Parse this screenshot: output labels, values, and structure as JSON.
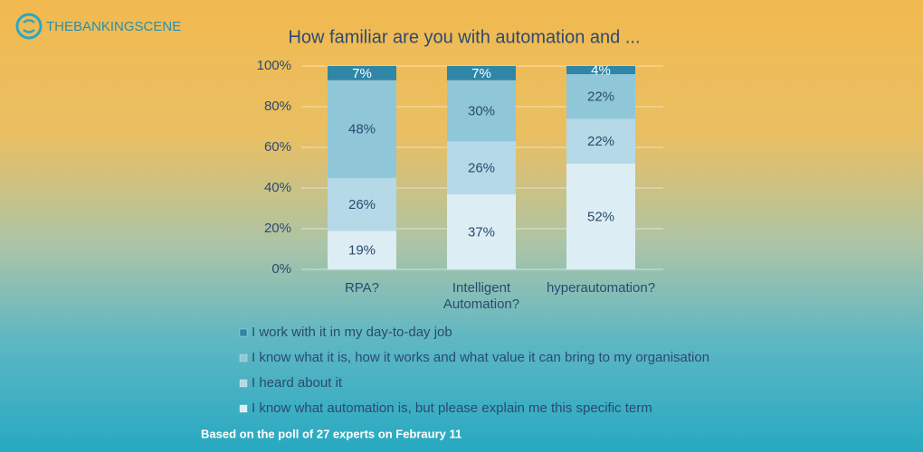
{
  "header": {
    "brand": "THEBANKINGSCENE"
  },
  "chart_data": {
    "type": "stacked_bar",
    "title": "How familiar are you with automation and ...",
    "categories": [
      "RPA?",
      "Intelligent Automation?",
      "hyperautomation?"
    ],
    "series": [
      {
        "name": "I know what automation is, but please explain me this specific term",
        "color": "#dcedf4",
        "values": [
          19,
          37,
          52
        ],
        "value_labels": [
          "19%",
          "37%",
          "52%"
        ]
      },
      {
        "name": "I heard about it",
        "color": "#b5d9e6",
        "values": [
          26,
          26,
          22
        ],
        "value_labels": [
          "26%",
          "26%",
          "22%"
        ]
      },
      {
        "name": "I know what it is, how it works and what value it can bring to my organisation",
        "color": "#8fc7d9",
        "values": [
          48,
          30,
          22
        ],
        "value_labels": [
          "48%",
          "30%",
          "22%"
        ]
      },
      {
        "name": "I work with it in my day-to-day job",
        "color": "#2f86a6",
        "values": [
          7,
          7,
          4
        ],
        "value_labels": [
          "7%",
          "7%",
          "4%"
        ]
      }
    ],
    "ylim": [
      0,
      100
    ],
    "yticks": [
      {
        "value": 0,
        "label": "0%"
      },
      {
        "value": 20,
        "label": "20%"
      },
      {
        "value": 40,
        "label": "40%"
      },
      {
        "value": 60,
        "label": "60%"
      },
      {
        "value": 80,
        "label": "80%"
      },
      {
        "value": 100,
        "label": "100%"
      }
    ],
    "grid": true
  },
  "footnote": "Based on the poll of 27 experts on Febraury 11"
}
